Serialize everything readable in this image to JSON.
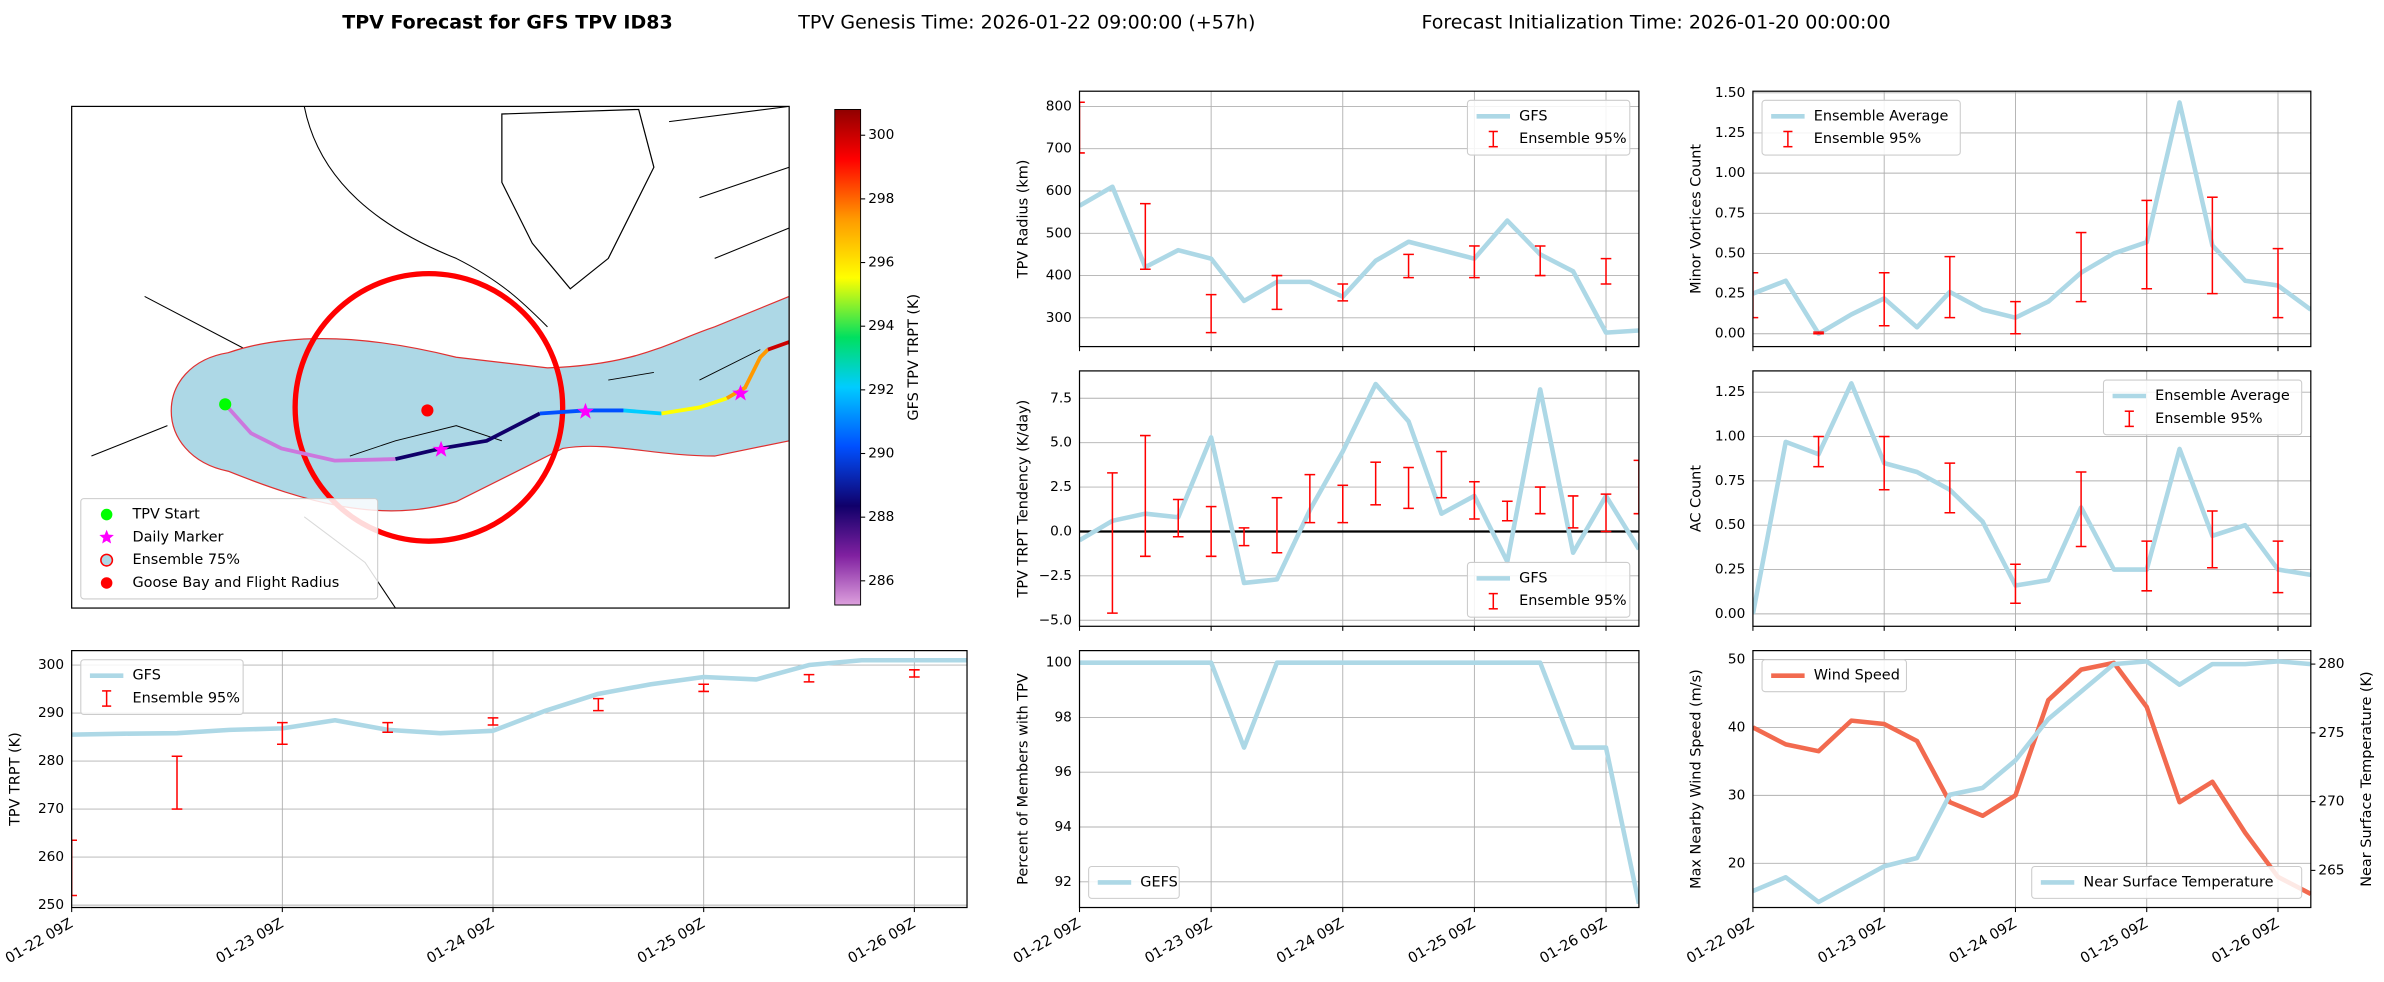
{
  "title": {
    "bold": "TPV Forecast for GFS TPV ID83",
    "genesis": "TPV Genesis Time: 2026-01-22 09:00:00 (+57h)",
    "init": "Forecast Initialization Time: 2026-01-20 00:00:00"
  },
  "chart_data": [
    {
      "type": "map",
      "colorbar_label": "GFS TPV TRPT (K)",
      "clim": [
        285.24,
        300.81
      ],
      "cticks": [
        286,
        288,
        290,
        292,
        294,
        296,
        298,
        300
      ],
      "legend": "lower left",
      "legend_entries": [
        {
          "name": "TPV Start",
          "marker": "circle",
          "color": "#00ff00"
        },
        {
          "name": "Daily Marker",
          "marker": "star",
          "color": "#ff00ff"
        },
        {
          "name": "Ensemble 75%",
          "marker": "circle",
          "color": "#add8e6",
          "edgecolor": "#ff0000"
        },
        {
          "name": "Goose Bay and Flight Radius",
          "marker": "circle",
          "color": "#ff0000"
        }
      ]
    },
    {
      "type": "line",
      "ylabel": "TPV TRPT (K)",
      "grid": true,
      "legend": "upper left",
      "ylim": [
        249.5,
        303
      ],
      "yticks": [
        250,
        260,
        270,
        280,
        290,
        300
      ],
      "categories": [
        "01-22 09Z",
        null,
        null,
        null,
        "01-23 09Z",
        null,
        null,
        null,
        "01-24 09Z",
        null,
        null,
        null,
        "01-25 09Z",
        null,
        null,
        null,
        "01-26 09Z",
        null
      ],
      "series": [
        {
          "name": "GFS",
          "color": "#add8e6",
          "values": [
            285.5,
            285.7,
            285.8,
            286.5,
            286.8,
            288.5,
            286.5,
            285.8,
            286.3,
            290.5,
            294,
            296,
            297.5,
            297,
            300,
            301,
            301,
            301
          ]
        }
      ],
      "ensemble": {
        "name": "Ensemble 95%",
        "color": "#ff0000",
        "low": [
          252,
          null,
          270,
          null,
          283.5,
          null,
          286,
          null,
          287.5,
          null,
          290.5,
          null,
          294.5,
          null,
          296.5,
          null,
          297.5,
          null
        ],
        "high": [
          263.5,
          null,
          281,
          null,
          288,
          null,
          288,
          null,
          289,
          null,
          293,
          null,
          296,
          null,
          298,
          null,
          299,
          null
        ]
      }
    },
    {
      "type": "line",
      "ylabel": "TPV Radius (km)",
      "grid": true,
      "legend": "upper right",
      "ylim": [
        232,
        836
      ],
      "yticks": [
        300,
        400,
        500,
        600,
        700,
        800
      ],
      "series": [
        {
          "name": "GFS",
          "color": "#add8e6",
          "values": [
            565,
            610,
            420,
            460,
            440,
            340,
            385,
            385,
            350,
            435,
            480,
            460,
            440,
            530,
            450,
            410,
            265,
            270
          ]
        }
      ],
      "ensemble": {
        "name": "Ensemble 95%",
        "color": "#ff0000",
        "low": [
          690,
          null,
          415,
          null,
          265,
          null,
          320,
          null,
          340,
          null,
          395,
          null,
          395,
          null,
          400,
          null,
          380,
          null
        ],
        "high": [
          810,
          null,
          570,
          null,
          355,
          null,
          400,
          null,
          380,
          null,
          450,
          null,
          470,
          null,
          470,
          null,
          440,
          null
        ]
      }
    },
    {
      "type": "line",
      "ylabel": "TPV TRPT Tendency (K/day)",
      "grid": true,
      "legend": "lower right",
      "zero_line": true,
      "ylim": [
        -5.34,
        9.04
      ],
      "yticks": [
        {
          "value": -5,
          "label": "−5.0"
        },
        {
          "value": -2.5,
          "label": "−2.5"
        },
        {
          "value": 0,
          "label": "0.0"
        },
        2.5,
        {
          "value": 5,
          "label": "5.0"
        },
        7.5
      ],
      "series": [
        {
          "name": "GFS",
          "color": "#add8e6",
          "values": [
            -0.5,
            0.6,
            1,
            0.8,
            5.3,
            -2.9,
            -2.7,
            1.2,
            4.5,
            8.3,
            6.2,
            1,
            2,
            -1.7,
            8,
            -1.2,
            2,
            -1
          ]
        }
      ],
      "ensemble": {
        "name": "Ensemble 95%",
        "color": "#ff0000",
        "low": [
          null,
          -4.6,
          -1.4,
          -0.3,
          -1.4,
          -0.8,
          -1.2,
          0.5,
          0.5,
          1.5,
          1.3,
          1.9,
          0.7,
          0.6,
          1,
          0.2,
          0,
          1
        ],
        "high": [
          null,
          3.3,
          5.4,
          1.8,
          1.4,
          0.2,
          1.9,
          3.2,
          2.6,
          3.9,
          3.6,
          4.5,
          2.8,
          1.7,
          2.5,
          2,
          2.1,
          4
        ]
      }
    },
    {
      "type": "line",
      "ylabel": "Minor Vortices Count",
      "grid": true,
      "legend": "upper left",
      "ylim": [
        -0.08,
        1.51
      ],
      "yticks": [
        {
          "value": 0,
          "label": "0.00"
        },
        0.25,
        {
          "value": 0.5,
          "label": "0.50"
        },
        0.75,
        {
          "value": 1,
          "label": "1.00"
        },
        1.25,
        {
          "value": 1.5,
          "label": "1.50"
        }
      ],
      "series": [
        {
          "name": "Ensemble Average",
          "color": "#add8e6",
          "values": [
            0.25,
            0.33,
            0,
            0.12,
            0.22,
            0.04,
            0.26,
            0.15,
            0.1,
            0.2,
            0.38,
            0.5,
            0.57,
            1.44,
            0.55,
            0.33,
            0.3,
            0.15
          ]
        }
      ],
      "ensemble": {
        "name": "Ensemble 95%",
        "color": "#ff0000",
        "low": [
          0.1,
          null,
          0,
          null,
          0.05,
          null,
          0.1,
          null,
          0,
          null,
          0.2,
          null,
          0.28,
          null,
          0.25,
          null,
          0.1,
          null
        ],
        "high": [
          0.38,
          null,
          0.01,
          null,
          0.38,
          null,
          0.48,
          null,
          0.2,
          null,
          0.63,
          null,
          0.83,
          null,
          0.85,
          null,
          0.53,
          null
        ]
      }
    },
    {
      "type": "line",
      "ylabel": "AC Count",
      "grid": true,
      "legend": "upper right",
      "ylim": [
        -0.07,
        1.37
      ],
      "yticks": [
        {
          "value": 0,
          "label": "0.00"
        },
        0.25,
        {
          "value": 0.5,
          "label": "0.50"
        },
        0.75,
        {
          "value": 1,
          "label": "1.00"
        },
        1.25
      ],
      "series": [
        {
          "name": "Ensemble Average",
          "color": "#add8e6",
          "values": [
            0,
            0.97,
            0.9,
            1.3,
            0.85,
            0.8,
            0.7,
            0.52,
            0.16,
            0.19,
            0.6,
            0.25,
            0.25,
            0.93,
            0.44,
            0.5,
            0.25,
            0.22
          ]
        }
      ],
      "ensemble": {
        "name": "Ensemble 95%",
        "color": "#ff0000",
        "low": [
          null,
          null,
          0.83,
          null,
          0.7,
          null,
          0.57,
          null,
          0.06,
          null,
          0.38,
          null,
          0.13,
          null,
          0.26,
          null,
          0.12,
          null
        ],
        "high": [
          null,
          null,
          1.0,
          null,
          1.0,
          null,
          0.85,
          null,
          0.28,
          null,
          0.8,
          null,
          0.41,
          null,
          0.58,
          null,
          0.41,
          null
        ]
      }
    },
    {
      "type": "line",
      "ylabel": "Percent of Members with TPV",
      "grid": true,
      "legend": "lower left",
      "ylim": [
        91.06,
        100.44
      ],
      "yticks": [
        92,
        94,
        96,
        98,
        100
      ],
      "categories": [
        "01-22 09Z",
        null,
        null,
        null,
        "01-23 09Z",
        null,
        null,
        null,
        "01-24 09Z",
        null,
        null,
        null,
        "01-25 09Z",
        null,
        null,
        null,
        "01-26 09Z",
        null
      ],
      "series": [
        {
          "name": "GEFS",
          "color": "#add8e6",
          "values": [
            100,
            100,
            100,
            100,
            100,
            96.9,
            100,
            100,
            100,
            100,
            100,
            100,
            100,
            100,
            100,
            96.9,
            96.9,
            91.2
          ]
        }
      ]
    },
    {
      "type": "line",
      "ylabel": "Max Nearby Wind Speed (m/s)",
      "ylabel_color": "#f26a4f",
      "y2label": "Near Surface Temperature (K)",
      "y2label_color": "#4169e1",
      "grid": true,
      "ylim": [
        13.5,
        51.3
      ],
      "yticks": [
        20,
        30,
        40,
        50
      ],
      "y2lim": [
        262.3,
        280.98
      ],
      "y2ticks": [
        265,
        270,
        275,
        280
      ],
      "categories": [
        "01-22 09Z",
        null,
        null,
        null,
        "01-23 09Z",
        null,
        null,
        null,
        "01-24 09Z",
        null,
        null,
        null,
        "01-25 09Z",
        null,
        null,
        null,
        "01-26 09Z",
        null
      ],
      "series": [
        {
          "name": "Wind Speed",
          "color": "#f26a4f",
          "legend": "upper left",
          "values": [
            40,
            37.5,
            36.5,
            41,
            40.5,
            38,
            29,
            27,
            30,
            44,
            48.5,
            49.5,
            43,
            29,
            32,
            24.5,
            18,
            15.5
          ]
        },
        {
          "name": "Near Surface Temperature",
          "color": "#add8e6",
          "axis": "y2",
          "legend": "lower right",
          "values": [
            263.5,
            264.5,
            262.7,
            264,
            265.3,
            265.9,
            270.5,
            271,
            273,
            276,
            278,
            280,
            280.2,
            278.5,
            280,
            280,
            280.2,
            280
          ]
        }
      ]
    }
  ]
}
